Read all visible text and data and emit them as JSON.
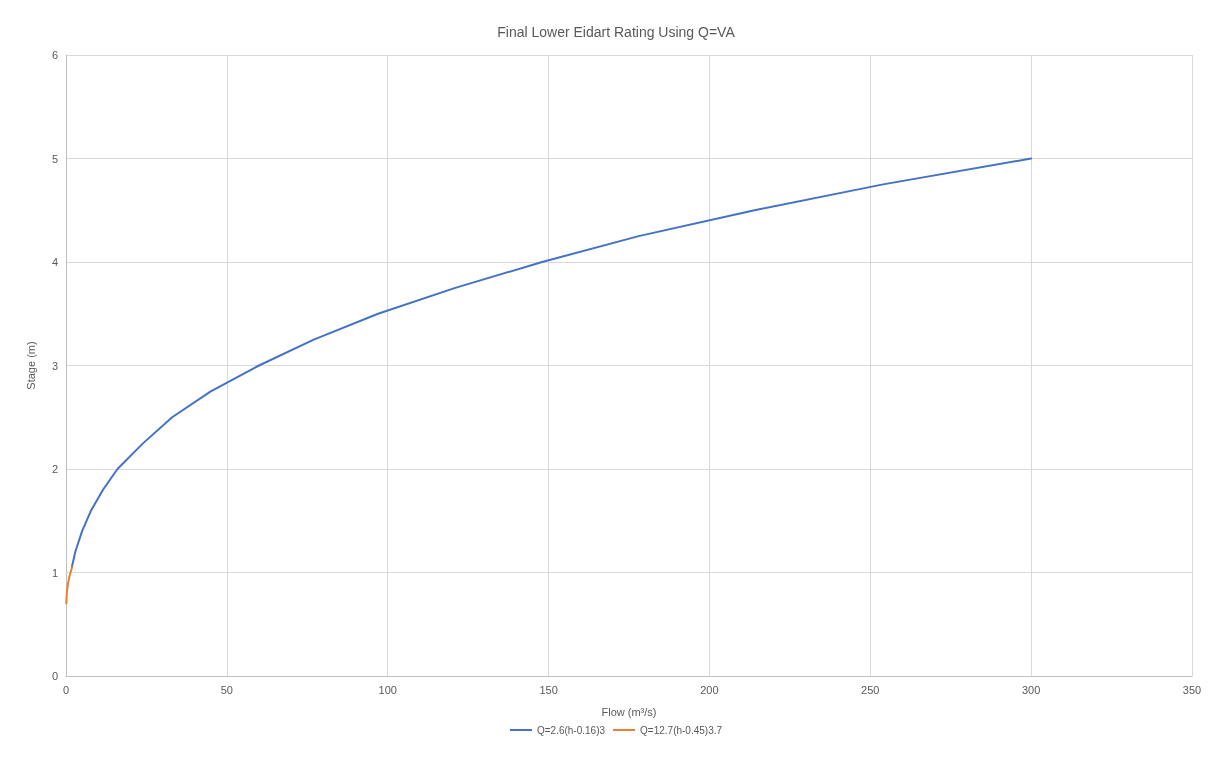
{
  "chart_data": {
    "type": "line",
    "title": "Final Lower Eidart Rating Using Q=VA",
    "xlabel": "Flow (m³/s)",
    "ylabel": "Stage (m)",
    "xlim": [
      0,
      350
    ],
    "xticks": [
      0,
      50,
      100,
      150,
      200,
      250,
      300,
      350
    ],
    "ylim": [
      0,
      6
    ],
    "yticks": [
      0,
      1,
      2,
      3,
      4,
      5,
      6
    ],
    "grid": true,
    "legend": "bottom",
    "marker": "none",
    "line_style": "solid",
    "series": [
      {
        "name": "Q=2.6(h-0.16)3",
        "color": "#4472c4",
        "x": [
          1.8,
          2.9,
          5,
          7.8,
          11.5,
          16,
          24,
          33,
          45,
          60,
          77,
          97,
          121,
          148,
          178,
          214,
          254,
          300
        ],
        "values": [
          1.05,
          1.2,
          1.4,
          1.6,
          1.8,
          2.0,
          2.25,
          2.5,
          2.75,
          3.0,
          3.25,
          3.5,
          3.75,
          4.0,
          4.25,
          4.5,
          4.75,
          5.0
        ]
      },
      {
        "name": "Q=12.7(h-0.45)3.7",
        "color": "#ed7d31",
        "x": [
          0.08,
          0.15,
          0.26,
          0.43,
          0.66,
          0.98,
          1.4,
          1.9
        ],
        "values": [
          0.7,
          0.75,
          0.8,
          0.85,
          0.9,
          0.95,
          1.0,
          1.05
        ]
      }
    ]
  }
}
